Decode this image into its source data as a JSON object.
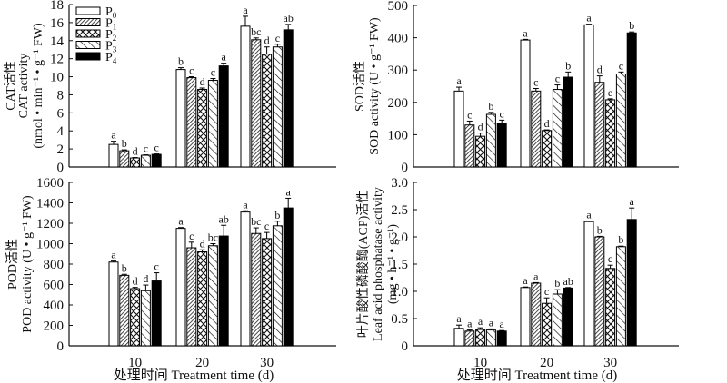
{
  "chart_data": [
    {
      "id": "cat",
      "type": "bar",
      "ylabel_cn": "CAT活性",
      "ylabel_en": "CAT activity",
      "ylabel_unit": "(nmol • min⁻¹ • g⁻¹ FW)",
      "ylim": [
        0,
        18
      ],
      "yticks": [
        "0",
        "2",
        "4",
        "6",
        "8",
        "10",
        "12",
        "14",
        "16",
        "18"
      ],
      "ytick_values": [
        0,
        2,
        4,
        6,
        8,
        10,
        12,
        14,
        16,
        18
      ],
      "categories": [
        "10",
        "20",
        "30"
      ],
      "show_xticks": false,
      "series": [
        {
          "name": "P0",
          "values": [
            2.5,
            10.8,
            15.6
          ],
          "err": [
            0.35,
            0.2,
            1.1
          ],
          "letters": [
            "a",
            "b",
            "a"
          ]
        },
        {
          "name": "P1",
          "values": [
            1.8,
            9.9,
            14.1
          ],
          "err": [
            0.1,
            0.1,
            0.2
          ],
          "letters": [
            "b",
            "c",
            "bc"
          ]
        },
        {
          "name": "P2",
          "values": [
            1.0,
            8.6,
            12.5
          ],
          "err": [
            0.05,
            0.15,
            0.8
          ],
          "letters": [
            "d",
            "d",
            "d"
          ]
        },
        {
          "name": "P3",
          "values": [
            1.3,
            9.6,
            13.3
          ],
          "err": [
            0.05,
            0.2,
            0.3
          ],
          "letters": [
            "c",
            "c",
            "c"
          ]
        },
        {
          "name": "P4",
          "values": [
            1.4,
            11.2,
            15.2
          ],
          "err": [
            0.05,
            0.3,
            0.6
          ],
          "letters": [
            "c",
            "a",
            "ab"
          ]
        }
      ]
    },
    {
      "id": "sod",
      "type": "bar",
      "ylabel_cn": "SOD活性",
      "ylabel_en": "SOD activity (U • g⁻¹ FW)",
      "ylabel_unit": "",
      "ylim": [
        0,
        500
      ],
      "yticks": [
        "0",
        "100",
        "200",
        "300",
        "400",
        "500"
      ],
      "ytick_values": [
        0,
        100,
        200,
        300,
        400,
        500
      ],
      "categories": [
        "10",
        "20",
        "30"
      ],
      "show_xticks": false,
      "series": [
        {
          "name": "P0",
          "values": [
            235,
            393,
            440
          ],
          "err": [
            12,
            2,
            2
          ],
          "letters": [
            "a",
            "a",
            "a"
          ]
        },
        {
          "name": "P1",
          "values": [
            130,
            235,
            262
          ],
          "err": [
            12,
            8,
            20
          ],
          "letters": [
            "c",
            "c",
            "d"
          ]
        },
        {
          "name": "P2",
          "values": [
            95,
            113,
            208
          ],
          "err": [
            10,
            2,
            3
          ],
          "letters": [
            "d",
            "d",
            "e"
          ]
        },
        {
          "name": "P3",
          "values": [
            163,
            240,
            288
          ],
          "err": [
            6,
            14,
            6
          ],
          "letters": [
            "b",
            "c",
            "c"
          ]
        },
        {
          "name": "P4",
          "values": [
            135,
            278,
            415
          ],
          "err": [
            10,
            16,
            3
          ],
          "letters": [
            "c",
            "b",
            "b"
          ]
        }
      ]
    },
    {
      "id": "pod",
      "type": "bar",
      "ylabel_cn": "POD活性",
      "ylabel_en": "POD activity (U • g⁻¹ FW)",
      "ylabel_unit": "",
      "ylim": [
        0,
        1600
      ],
      "yticks": [
        "0",
        "200",
        "400",
        "600",
        "800",
        "1000",
        "1200",
        "1400",
        "1600"
      ],
      "ytick_values": [
        0,
        200,
        400,
        600,
        800,
        1000,
        1200,
        1400,
        1600
      ],
      "categories": [
        "10",
        "20",
        "30"
      ],
      "show_xticks": true,
      "xlabel": "处理时间 Treatment time (d)",
      "series": [
        {
          "name": "P0",
          "values": [
            820,
            1150,
            1310
          ],
          "err": [
            10,
            8,
            12
          ],
          "letters": [
            "a",
            "a",
            "a"
          ]
        },
        {
          "name": "P1",
          "values": [
            690,
            960,
            1100
          ],
          "err": [
            10,
            55,
            55
          ],
          "letters": [
            "b",
            "c",
            "bc"
          ]
        },
        {
          "name": "P2",
          "values": [
            560,
            920,
            1050
          ],
          "err": [
            12,
            20,
            60
          ],
          "letters": [
            "d",
            "d",
            "c"
          ]
        },
        {
          "name": "P3",
          "values": [
            540,
            980,
            1175
          ],
          "err": [
            55,
            20,
            45
          ],
          "letters": [
            "d",
            "bc",
            "b"
          ]
        },
        {
          "name": "P4",
          "values": [
            635,
            1075,
            1350
          ],
          "err": [
            80,
            105,
            95
          ],
          "letters": [
            "c",
            "ab",
            "a"
          ]
        }
      ]
    },
    {
      "id": "acp",
      "type": "bar",
      "ylabel_cn": "叶片酸性磷酸酶(ACP)活性",
      "ylabel_en": "Leaf acid phosphatase activity",
      "ylabel_unit": "(mg • h⁻¹ • g⁻¹)",
      "ylim": [
        0,
        3.0
      ],
      "yticks": [
        "0",
        "0.5",
        "1.0",
        "1.5",
        "2.0",
        "2.5",
        "3.0"
      ],
      "ytick_values": [
        0,
        0.5,
        1.0,
        1.5,
        2.0,
        2.5,
        3.0
      ],
      "categories": [
        "10",
        "20",
        "30"
      ],
      "show_xticks": true,
      "xlabel": "处理时间 Treatment time (d)",
      "series": [
        {
          "name": "P0",
          "values": [
            0.32,
            1.07,
            2.28
          ],
          "err": [
            0.06,
            0.01,
            0.01
          ],
          "letters": [
            "a",
            "a",
            "a"
          ]
        },
        {
          "name": "P1",
          "values": [
            0.27,
            1.15,
            2.0
          ],
          "err": [
            0.02,
            0.01,
            0.01
          ],
          "letters": [
            "a",
            "a",
            "b"
          ]
        },
        {
          "name": "P2",
          "values": [
            0.3,
            0.78,
            1.42
          ],
          "err": [
            0.03,
            0.1,
            0.06
          ],
          "letters": [
            "a",
            "c",
            "c"
          ]
        },
        {
          "name": "P3",
          "values": [
            0.29,
            0.95,
            1.82
          ],
          "err": [
            0.02,
            0.08,
            0.01
          ],
          "letters": [
            "a",
            "b",
            "b"
          ]
        },
        {
          "name": "P4",
          "values": [
            0.27,
            1.06,
            2.32
          ],
          "err": [
            0.01,
            0.01,
            0.21
          ],
          "letters": [
            "a",
            "ab",
            "a"
          ]
        }
      ]
    }
  ],
  "legend": {
    "placement": "top-left of CAT panel",
    "entries": [
      {
        "label": "P",
        "sub": "0",
        "pattern": "open"
      },
      {
        "label": "P",
        "sub": "1",
        "pattern": "dense-hatch"
      },
      {
        "label": "P",
        "sub": "2",
        "pattern": "crosshatch"
      },
      {
        "label": "P",
        "sub": "3",
        "pattern": "diagonal"
      },
      {
        "label": "P",
        "sub": "4",
        "pattern": "solid"
      }
    ]
  }
}
